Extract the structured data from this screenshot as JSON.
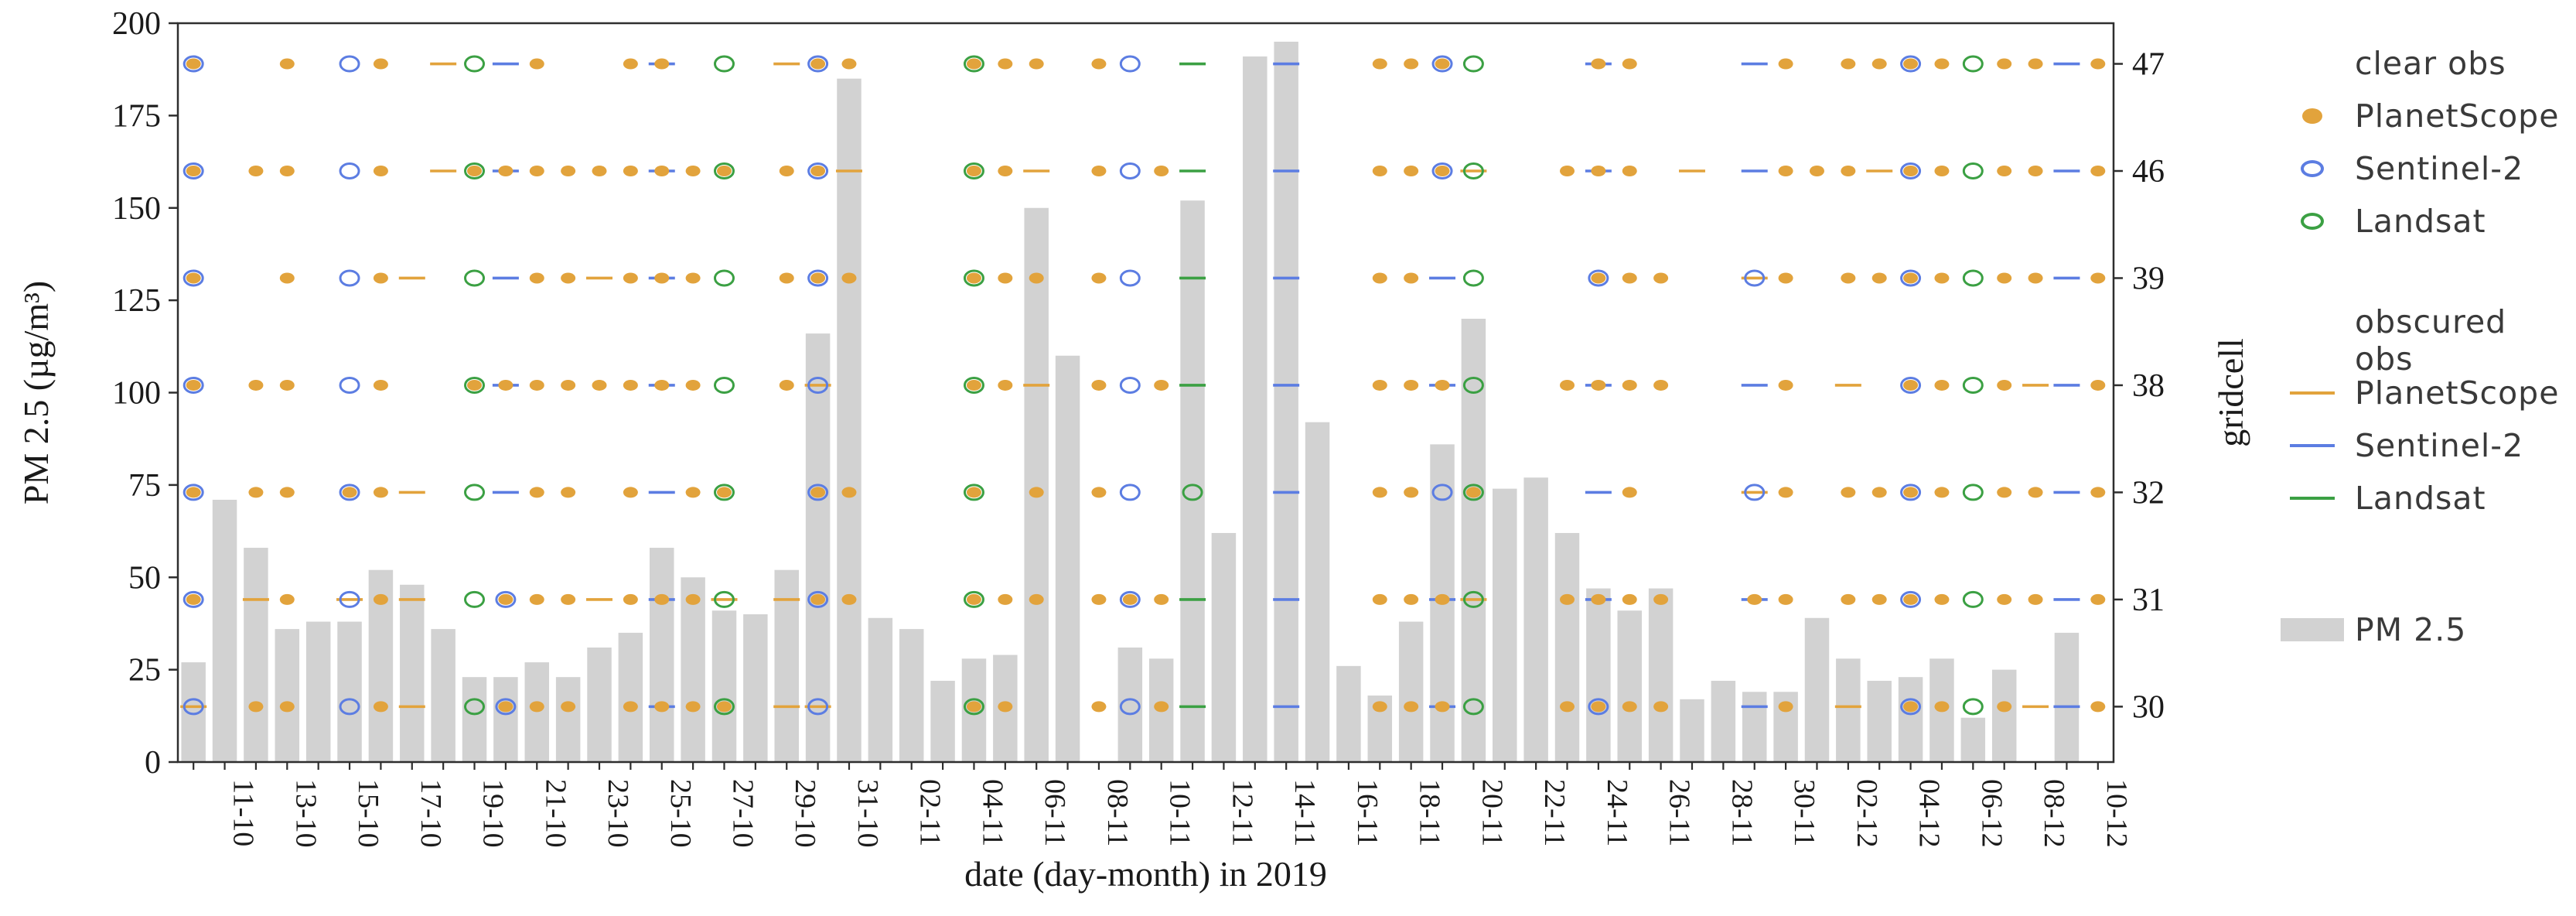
{
  "chart_data": {
    "type": "bar+scatter",
    "xlabel": "date (day-month) in 2019",
    "ylabel_left": "PM 2.5 (µg/m³)",
    "ylabel_right": "gridcell",
    "ylim": [
      0,
      200
    ],
    "yticks": [
      0,
      25,
      50,
      75,
      100,
      125,
      150,
      175,
      200
    ],
    "label_every_other_starting_index": 2,
    "categories": [
      "10-10",
      "11-10",
      "12-10",
      "13-10",
      "14-10",
      "15-10",
      "16-10",
      "17-10",
      "18-10",
      "19-10",
      "20-10",
      "21-10",
      "22-10",
      "23-10",
      "24-10",
      "25-10",
      "26-10",
      "27-10",
      "28-10",
      "29-10",
      "30-10",
      "31-10",
      "01-11",
      "02-11",
      "03-11",
      "04-11",
      "05-11",
      "06-11",
      "07-11",
      "08-11",
      "09-11",
      "10-11",
      "11-11",
      "12-11",
      "13-11",
      "14-11",
      "15-11",
      "16-11",
      "17-11",
      "18-11",
      "19-11",
      "20-11",
      "21-11",
      "22-11",
      "23-11",
      "24-11",
      "25-11",
      "26-11",
      "27-11",
      "28-11",
      "29-11",
      "30-11",
      "01-12",
      "02-12",
      "03-12",
      "04-12",
      "05-12",
      "06-12",
      "07-12",
      "08-12",
      "09-12",
      "10-12"
    ],
    "pm25_values": [
      27,
      71,
      58,
      36,
      38,
      38,
      52,
      48,
      36,
      23,
      23,
      27,
      23,
      31,
      35,
      58,
      50,
      41,
      40,
      52,
      116,
      185,
      39,
      36,
      22,
      28,
      29,
      150,
      110,
      0,
      31,
      28,
      152,
      62,
      191,
      195,
      92,
      26,
      18,
      38,
      86,
      120,
      74,
      77,
      62,
      47,
      41,
      47,
      17,
      22,
      19,
      19,
      39,
      28,
      22,
      23,
      28,
      12,
      25,
      0,
      35,
      0
    ],
    "gridcell_rows": [
      {
        "gridcell": "30",
        "pm_level": 15
      },
      {
        "gridcell": "31",
        "pm_level": 44
      },
      {
        "gridcell": "32",
        "pm_level": 73
      },
      {
        "gridcell": "38",
        "pm_level": 102
      },
      {
        "gridcell": "39",
        "pm_level": 131
      },
      {
        "gridcell": "46",
        "pm_level": 160
      },
      {
        "gridcell": "47",
        "pm_level": 189
      }
    ],
    "marker_types": {
      "pc": {
        "satellite": "PlanetScope",
        "condition": "clear",
        "shape": "filled-dot",
        "color": "#e2a33c"
      },
      "sc": {
        "satellite": "Sentinel-2",
        "condition": "clear",
        "shape": "open-circle",
        "color": "#5c7de2"
      },
      "lc": {
        "satellite": "Landsat",
        "condition": "clear",
        "shape": "open-circle",
        "color": "#3ba043"
      },
      "po": {
        "satellite": "PlanetScope",
        "condition": "obscured",
        "shape": "dash",
        "color": "#e2a33c"
      },
      "so": {
        "satellite": "Sentinel-2",
        "condition": "obscured",
        "shape": "dash",
        "color": "#5c7de2"
      },
      "lo": {
        "satellite": "Landsat",
        "condition": "obscured",
        "shape": "dash",
        "color": "#3ba043"
      }
    },
    "observations": {
      "47": [
        [
          1,
          "sc",
          "pc"
        ],
        [
          4,
          "pc"
        ],
        [
          6,
          "sc"
        ],
        [
          7,
          "pc"
        ],
        [
          9,
          "po"
        ],
        [
          10,
          "lc"
        ],
        [
          11,
          "so"
        ],
        [
          12,
          "pc"
        ],
        [
          15,
          "pc"
        ],
        [
          16,
          "so",
          "pc"
        ],
        [
          18,
          "lc"
        ],
        [
          20,
          "po"
        ],
        [
          21,
          "sc",
          "pc"
        ],
        [
          22,
          "pc"
        ],
        [
          26,
          "lc",
          "pc"
        ],
        [
          27,
          "pc"
        ],
        [
          28,
          "pc"
        ],
        [
          30,
          "pc"
        ],
        [
          31,
          "sc"
        ],
        [
          33,
          "lo"
        ],
        [
          36,
          "so"
        ],
        [
          39,
          "pc"
        ],
        [
          40,
          "pc"
        ],
        [
          41,
          "sc",
          "pc"
        ],
        [
          42,
          "lc"
        ],
        [
          46,
          "so",
          "pc"
        ],
        [
          47,
          "pc"
        ],
        [
          51,
          "so"
        ],
        [
          52,
          "pc"
        ],
        [
          54,
          "pc"
        ],
        [
          55,
          "pc"
        ],
        [
          56,
          "sc",
          "pc"
        ],
        [
          57,
          "pc"
        ],
        [
          58,
          "lc"
        ],
        [
          59,
          "pc"
        ],
        [
          60,
          "pc"
        ],
        [
          61,
          "so"
        ],
        [
          62,
          "pc"
        ]
      ],
      "46": [
        [
          1,
          "sc",
          "pc"
        ],
        [
          3,
          "pc"
        ],
        [
          4,
          "pc"
        ],
        [
          6,
          "sc"
        ],
        [
          7,
          "pc"
        ],
        [
          9,
          "po"
        ],
        [
          10,
          "lc",
          "pc"
        ],
        [
          11,
          "so",
          "pc"
        ],
        [
          12,
          "pc"
        ],
        [
          13,
          "pc"
        ],
        [
          14,
          "pc"
        ],
        [
          15,
          "pc"
        ],
        [
          16,
          "so",
          "pc"
        ],
        [
          17,
          "pc"
        ],
        [
          18,
          "lc",
          "pc"
        ],
        [
          20,
          "pc"
        ],
        [
          21,
          "sc",
          "pc"
        ],
        [
          22,
          "po"
        ],
        [
          26,
          "lc",
          "pc"
        ],
        [
          27,
          "pc"
        ],
        [
          28,
          "po"
        ],
        [
          30,
          "pc"
        ],
        [
          31,
          "sc"
        ],
        [
          32,
          "pc"
        ],
        [
          33,
          "lo"
        ],
        [
          36,
          "so"
        ],
        [
          39,
          "pc"
        ],
        [
          40,
          "pc"
        ],
        [
          41,
          "sc",
          "pc"
        ],
        [
          42,
          "lc",
          "po"
        ],
        [
          45,
          "pc"
        ],
        [
          46,
          "so",
          "pc"
        ],
        [
          47,
          "pc"
        ],
        [
          49,
          "po"
        ],
        [
          51,
          "so"
        ],
        [
          52,
          "pc"
        ],
        [
          53,
          "pc"
        ],
        [
          54,
          "pc"
        ],
        [
          55,
          "po"
        ],
        [
          56,
          "sc",
          "pc"
        ],
        [
          57,
          "pc"
        ],
        [
          58,
          "lc"
        ],
        [
          59,
          "pc"
        ],
        [
          60,
          "pc"
        ],
        [
          61,
          "so"
        ],
        [
          62,
          "pc"
        ]
      ],
      "39": [
        [
          1,
          "sc",
          "pc"
        ],
        [
          4,
          "pc"
        ],
        [
          6,
          "sc"
        ],
        [
          7,
          "pc"
        ],
        [
          8,
          "po"
        ],
        [
          10,
          "lc"
        ],
        [
          11,
          "so"
        ],
        [
          12,
          "pc"
        ],
        [
          13,
          "pc"
        ],
        [
          14,
          "po"
        ],
        [
          15,
          "pc"
        ],
        [
          16,
          "so",
          "pc"
        ],
        [
          17,
          "pc"
        ],
        [
          18,
          "lc"
        ],
        [
          20,
          "pc"
        ],
        [
          21,
          "sc",
          "pc"
        ],
        [
          22,
          "pc"
        ],
        [
          26,
          "lc",
          "pc"
        ],
        [
          27,
          "pc"
        ],
        [
          28,
          "pc"
        ],
        [
          30,
          "pc"
        ],
        [
          31,
          "sc"
        ],
        [
          33,
          "lo"
        ],
        [
          36,
          "so"
        ],
        [
          39,
          "pc"
        ],
        [
          40,
          "pc"
        ],
        [
          41,
          "so"
        ],
        [
          42,
          "lc"
        ],
        [
          46,
          "sc",
          "pc"
        ],
        [
          47,
          "pc"
        ],
        [
          48,
          "pc"
        ],
        [
          51,
          "sc",
          "po"
        ],
        [
          52,
          "pc"
        ],
        [
          54,
          "pc"
        ],
        [
          55,
          "pc"
        ],
        [
          56,
          "sc",
          "pc"
        ],
        [
          57,
          "pc"
        ],
        [
          58,
          "lc"
        ],
        [
          59,
          "pc"
        ],
        [
          60,
          "pc"
        ],
        [
          61,
          "so"
        ],
        [
          62,
          "pc"
        ]
      ],
      "38": [
        [
          1,
          "sc",
          "pc"
        ],
        [
          3,
          "pc"
        ],
        [
          4,
          "pc"
        ],
        [
          6,
          "sc"
        ],
        [
          7,
          "pc"
        ],
        [
          10,
          "lc",
          "pc"
        ],
        [
          11,
          "so",
          "pc"
        ],
        [
          12,
          "pc"
        ],
        [
          13,
          "pc"
        ],
        [
          14,
          "pc"
        ],
        [
          15,
          "pc"
        ],
        [
          16,
          "so",
          "pc"
        ],
        [
          17,
          "pc"
        ],
        [
          18,
          "lc"
        ],
        [
          20,
          "pc"
        ],
        [
          21,
          "sc",
          "po"
        ],
        [
          26,
          "lc",
          "pc"
        ],
        [
          27,
          "pc"
        ],
        [
          28,
          "po"
        ],
        [
          30,
          "pc"
        ],
        [
          31,
          "sc"
        ],
        [
          32,
          "pc"
        ],
        [
          33,
          "lo"
        ],
        [
          36,
          "so"
        ],
        [
          39,
          "pc"
        ],
        [
          40,
          "pc"
        ],
        [
          41,
          "so",
          "pc"
        ],
        [
          42,
          "lc"
        ],
        [
          45,
          "pc"
        ],
        [
          46,
          "so",
          "pc"
        ],
        [
          47,
          "pc"
        ],
        [
          48,
          "pc"
        ],
        [
          51,
          "so"
        ],
        [
          52,
          "pc"
        ],
        [
          54,
          "po"
        ],
        [
          56,
          "sc",
          "pc"
        ],
        [
          57,
          "pc"
        ],
        [
          58,
          "lc"
        ],
        [
          59,
          "pc"
        ],
        [
          60,
          "po"
        ],
        [
          61,
          "so"
        ],
        [
          62,
          "pc"
        ]
      ],
      "32": [
        [
          1,
          "sc",
          "pc"
        ],
        [
          3,
          "pc"
        ],
        [
          4,
          "pc"
        ],
        [
          6,
          "sc",
          "pc"
        ],
        [
          7,
          "pc"
        ],
        [
          8,
          "po"
        ],
        [
          10,
          "lc"
        ],
        [
          11,
          "so"
        ],
        [
          12,
          "pc"
        ],
        [
          13,
          "pc"
        ],
        [
          15,
          "pc"
        ],
        [
          16,
          "so"
        ],
        [
          17,
          "pc"
        ],
        [
          18,
          "lc",
          "pc"
        ],
        [
          21,
          "sc",
          "pc"
        ],
        [
          22,
          "pc"
        ],
        [
          26,
          "lc",
          "pc"
        ],
        [
          28,
          "pc"
        ],
        [
          30,
          "pc"
        ],
        [
          31,
          "sc"
        ],
        [
          33,
          "lc"
        ],
        [
          36,
          "so"
        ],
        [
          39,
          "pc"
        ],
        [
          40,
          "pc"
        ],
        [
          41,
          "sc"
        ],
        [
          42,
          "lc",
          "pc"
        ],
        [
          46,
          "so"
        ],
        [
          47,
          "pc"
        ],
        [
          51,
          "sc",
          "po"
        ],
        [
          52,
          "pc"
        ],
        [
          54,
          "pc"
        ],
        [
          55,
          "pc"
        ],
        [
          56,
          "sc",
          "pc"
        ],
        [
          57,
          "pc"
        ],
        [
          58,
          "lc"
        ],
        [
          59,
          "pc"
        ],
        [
          60,
          "pc"
        ],
        [
          61,
          "so"
        ],
        [
          62,
          "pc"
        ]
      ],
      "31": [
        [
          1,
          "sc",
          "pc"
        ],
        [
          3,
          "po"
        ],
        [
          4,
          "pc"
        ],
        [
          6,
          "sc",
          "po"
        ],
        [
          7,
          "pc"
        ],
        [
          8,
          "po"
        ],
        [
          10,
          "lc"
        ],
        [
          11,
          "sc",
          "pc"
        ],
        [
          12,
          "pc"
        ],
        [
          13,
          "pc"
        ],
        [
          14,
          "po"
        ],
        [
          15,
          "pc"
        ],
        [
          16,
          "so",
          "pc"
        ],
        [
          17,
          "pc"
        ],
        [
          18,
          "lc",
          "po"
        ],
        [
          20,
          "po"
        ],
        [
          21,
          "sc",
          "pc"
        ],
        [
          22,
          "pc"
        ],
        [
          26,
          "lc",
          "pc"
        ],
        [
          27,
          "pc"
        ],
        [
          28,
          "pc"
        ],
        [
          30,
          "pc"
        ],
        [
          31,
          "sc",
          "pc"
        ],
        [
          32,
          "pc"
        ],
        [
          33,
          "lo"
        ],
        [
          36,
          "so"
        ],
        [
          39,
          "pc"
        ],
        [
          40,
          "pc"
        ],
        [
          41,
          "so",
          "pc"
        ],
        [
          42,
          "lc",
          "po"
        ],
        [
          45,
          "pc"
        ],
        [
          46,
          "so",
          "pc"
        ],
        [
          47,
          "pc"
        ],
        [
          48,
          "pc"
        ],
        [
          51,
          "so",
          "pc"
        ],
        [
          52,
          "pc"
        ],
        [
          54,
          "pc"
        ],
        [
          55,
          "pc"
        ],
        [
          56,
          "sc",
          "pc"
        ],
        [
          57,
          "pc"
        ],
        [
          58,
          "lc"
        ],
        [
          59,
          "pc"
        ],
        [
          60,
          "pc"
        ],
        [
          61,
          "so"
        ],
        [
          62,
          "pc"
        ]
      ],
      "30": [
        [
          1,
          "sc",
          "po"
        ],
        [
          3,
          "pc"
        ],
        [
          4,
          "pc"
        ],
        [
          6,
          "sc"
        ],
        [
          7,
          "pc"
        ],
        [
          8,
          "po"
        ],
        [
          10,
          "lc"
        ],
        [
          11,
          "sc",
          "pc"
        ],
        [
          12,
          "pc"
        ],
        [
          13,
          "pc"
        ],
        [
          15,
          "pc"
        ],
        [
          16,
          "so",
          "pc"
        ],
        [
          17,
          "pc"
        ],
        [
          18,
          "lc",
          "pc"
        ],
        [
          20,
          "po"
        ],
        [
          21,
          "sc",
          "po"
        ],
        [
          26,
          "lc",
          "pc"
        ],
        [
          27,
          "pc"
        ],
        [
          30,
          "pc"
        ],
        [
          31,
          "sc"
        ],
        [
          32,
          "pc"
        ],
        [
          33,
          "lo"
        ],
        [
          36,
          "so"
        ],
        [
          39,
          "pc"
        ],
        [
          40,
          "pc"
        ],
        [
          41,
          "so",
          "pc"
        ],
        [
          42,
          "lc"
        ],
        [
          45,
          "pc"
        ],
        [
          46,
          "sc",
          "pc"
        ],
        [
          47,
          "pc"
        ],
        [
          48,
          "pc"
        ],
        [
          51,
          "so"
        ],
        [
          52,
          "pc"
        ],
        [
          54,
          "po"
        ],
        [
          56,
          "sc",
          "pc"
        ],
        [
          57,
          "pc"
        ],
        [
          58,
          "lc"
        ],
        [
          59,
          "pc"
        ],
        [
          60,
          "po"
        ],
        [
          61,
          "so"
        ],
        [
          62,
          "pc"
        ]
      ]
    },
    "bar_color": "#d2d2d2",
    "spine_color": "#2e2e2e",
    "layout": {
      "plot_left": 230,
      "plot_top": 30,
      "plot_right": 2733,
      "plot_bottom": 985,
      "grid": false,
      "legend_position": "right-outside"
    }
  },
  "legend": {
    "clear_header": "clear obs",
    "clear_items": [
      {
        "label": "PlanetScope"
      },
      {
        "label": "Sentinel-2"
      },
      {
        "label": "Landsat"
      }
    ],
    "obscured_header": "obscured obs",
    "obscured_items": [
      {
        "label": "PlanetScope"
      },
      {
        "label": "Sentinel-2"
      },
      {
        "label": "Landsat"
      }
    ],
    "pm_label": "PM 2.5"
  },
  "colors": {
    "planetscope": "#e2a33c",
    "sentinel2": "#5c7de2",
    "landsat": "#3ba043",
    "pm_bar": "#d2d2d2"
  }
}
